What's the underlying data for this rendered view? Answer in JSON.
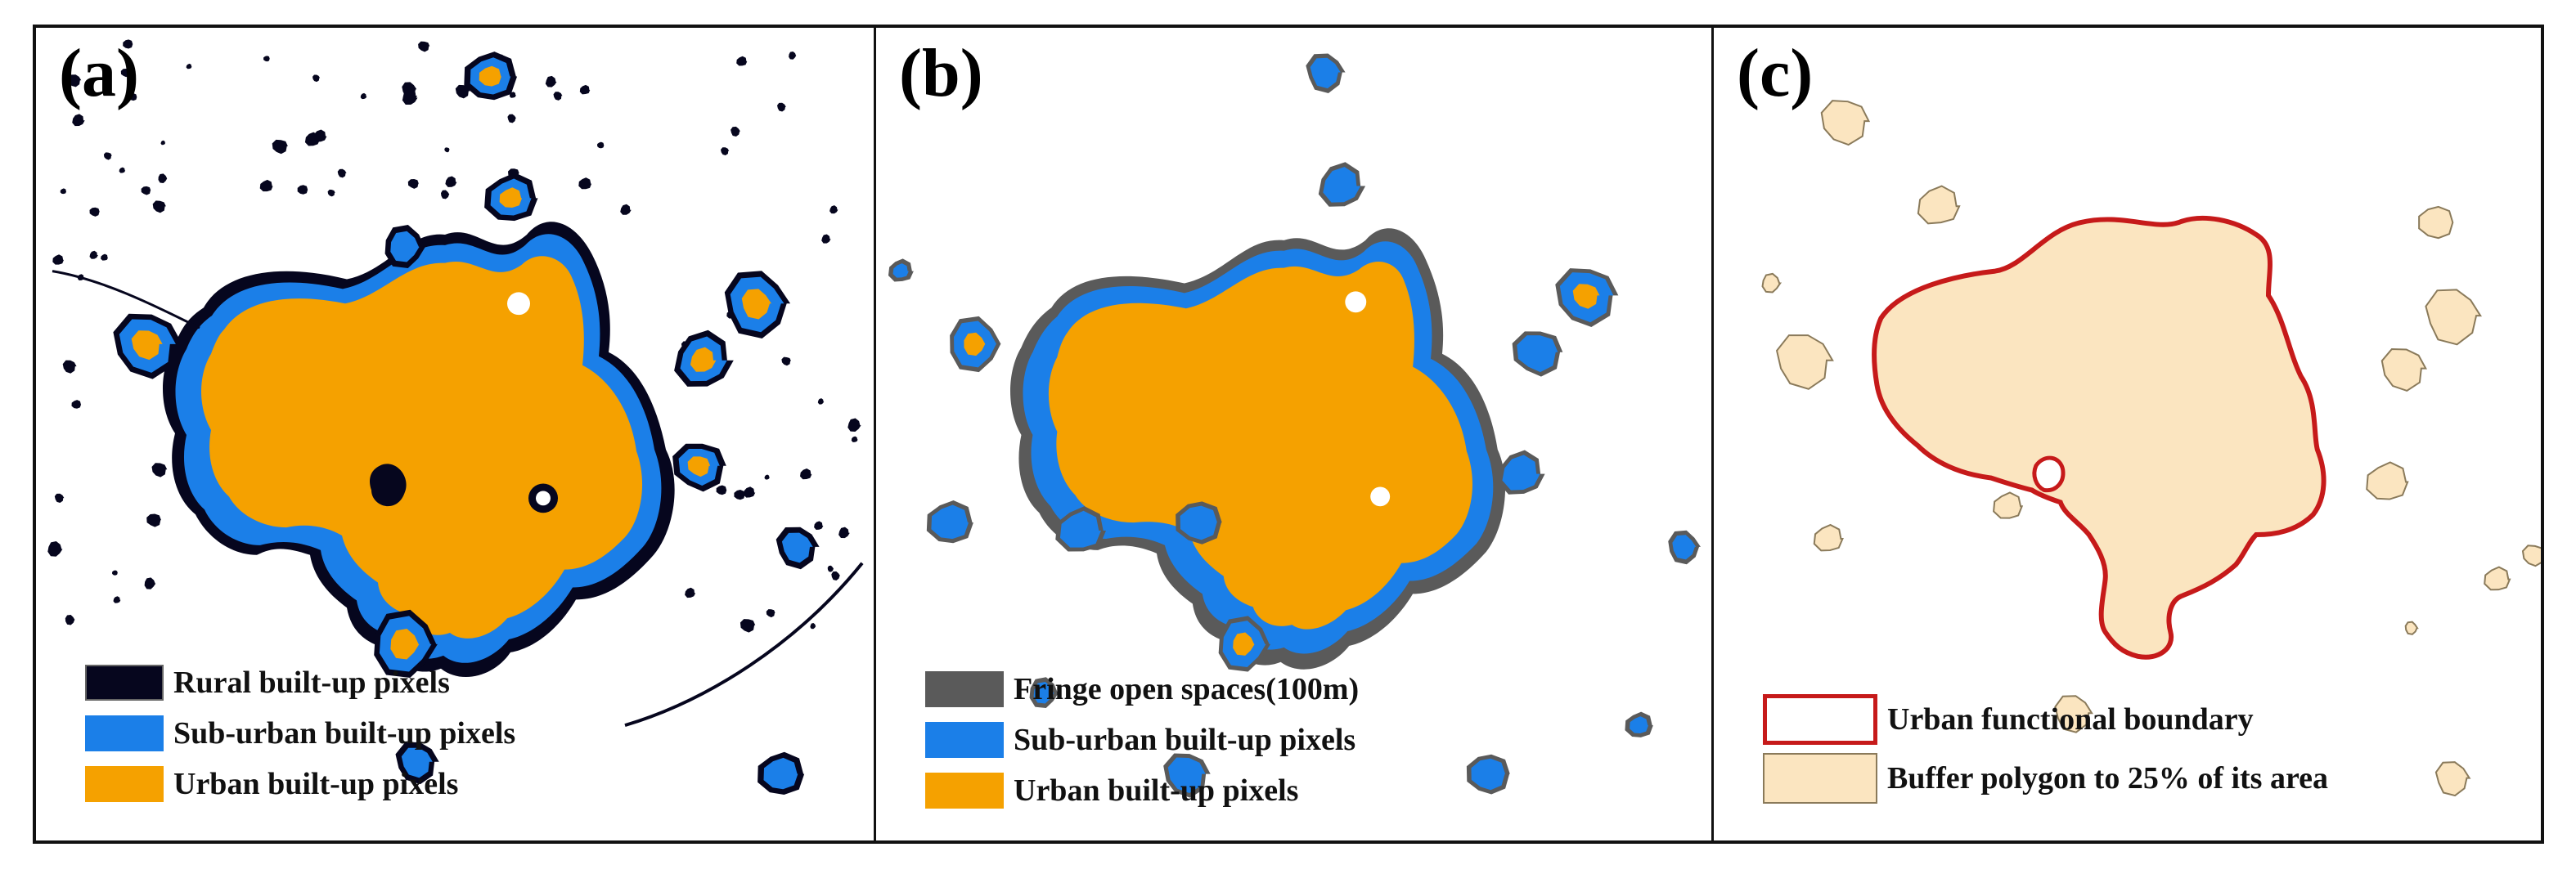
{
  "colors": {
    "rural": "#06061e",
    "suburban": "#1b7fe8",
    "urban": "#f5a100",
    "fringe": "#5a5a5a",
    "boundary": "#c61a1a",
    "buffer_fill": "#fbe5c0",
    "buffer_edge": "#8a7a5a"
  },
  "panels": [
    {
      "label": "(a)",
      "legend": [
        {
          "text": "Rural built-up pixels",
          "swatch": "rural"
        },
        {
          "text": "Sub-urban built-up pixels",
          "swatch": "suburban"
        },
        {
          "text": "Urban built-up pixels",
          "swatch": "urban"
        }
      ]
    },
    {
      "label": "(b)",
      "legend": [
        {
          "text": "Fringe open spaces(100m)",
          "swatch": "fringe"
        },
        {
          "text": "Sub-urban built-up pixels",
          "swatch": "suburban"
        },
        {
          "text": "Urban built-up pixels",
          "swatch": "urban"
        }
      ]
    },
    {
      "label": "(c)",
      "legend": [
        {
          "text": "Urban functional boundary",
          "swatch": "boundary"
        },
        {
          "text": "Buffer polygon to 25% of its area",
          "swatch": "buffer"
        }
      ]
    }
  ]
}
